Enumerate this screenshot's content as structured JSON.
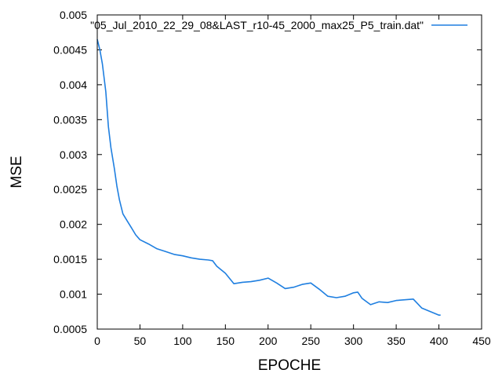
{
  "chart_data": {
    "type": "line",
    "xlabel": "EPOCHE",
    "ylabel": "MSE",
    "xlim": [
      0,
      450
    ],
    "ylim": [
      0.0005,
      0.005
    ],
    "x_ticks": [
      0,
      50,
      100,
      150,
      200,
      250,
      300,
      350,
      400,
      450
    ],
    "x_tick_labels": [
      "0",
      "50",
      "100",
      "150",
      "200",
      "250",
      "300",
      "350",
      "400",
      "450"
    ],
    "y_ticks": [
      0.0005,
      0.001,
      0.0015,
      0.002,
      0.0025,
      0.003,
      0.0035,
      0.004,
      0.0045,
      0.005
    ],
    "y_tick_labels": [
      "0.0005",
      "0.001",
      "0.0015",
      "0.002",
      "0.0025",
      "0.003",
      "0.0035",
      "0.004",
      "0.0045",
      "0.005"
    ],
    "grid": false,
    "legend_position": "top-right",
    "series": [
      {
        "name": "\"05_Jul_2010_22_29_08&LAST_r10-45_2000_max25_P5_train.dat\"",
        "color": "#1f7fe0",
        "x": [
          0,
          3,
          6,
          10,
          13,
          16,
          20,
          23,
          26,
          30,
          35,
          40,
          45,
          50,
          60,
          70,
          80,
          90,
          100,
          110,
          120,
          130,
          135,
          140,
          150,
          160,
          170,
          180,
          190,
          200,
          210,
          220,
          230,
          240,
          250,
          260,
          270,
          280,
          290,
          300,
          305,
          310,
          320,
          330,
          340,
          350,
          360,
          370,
          380,
          390,
          400,
          402
        ],
        "y": [
          0.00465,
          0.0045,
          0.0043,
          0.0039,
          0.0034,
          0.0031,
          0.0028,
          0.00255,
          0.00235,
          0.00215,
          0.00205,
          0.00195,
          0.00185,
          0.00178,
          0.00172,
          0.00165,
          0.00161,
          0.00157,
          0.00155,
          0.00152,
          0.0015,
          0.00149,
          0.00148,
          0.0014,
          0.0013,
          0.00115,
          0.00117,
          0.00118,
          0.0012,
          0.00123,
          0.00116,
          0.00108,
          0.0011,
          0.00114,
          0.00116,
          0.00107,
          0.00097,
          0.00095,
          0.00097,
          0.00102,
          0.00103,
          0.00094,
          0.00085,
          0.00089,
          0.00088,
          0.00091,
          0.00092,
          0.00093,
          0.0008,
          0.00075,
          0.0007,
          0.0007
        ]
      }
    ]
  }
}
